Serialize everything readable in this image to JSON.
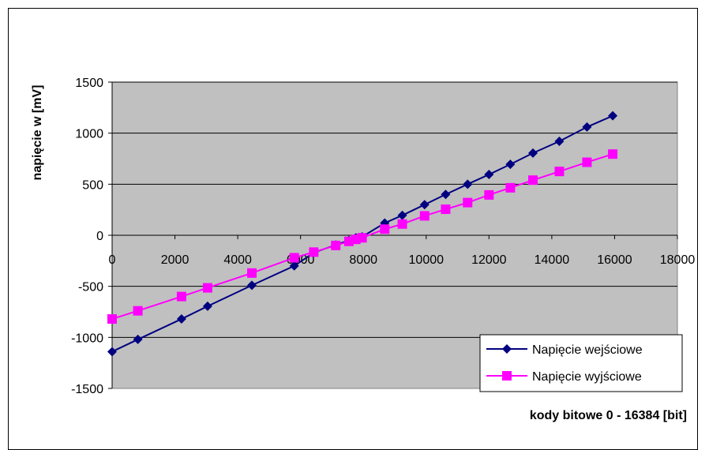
{
  "chart_data": {
    "type": "line",
    "title": "",
    "xlabel": "kody bitowe 0 - 16384 [bit]",
    "ylabel": "napięcie w [mV]",
    "xlim": [
      0,
      18000
    ],
    "ylim": [
      -1500,
      1500
    ],
    "xticks": [
      0,
      2000,
      4000,
      6000,
      8000,
      10000,
      12000,
      14000,
      16000,
      18000
    ],
    "yticks": [
      -1500,
      -1000,
      -500,
      0,
      500,
      1000,
      1500
    ],
    "grid": "horizontal",
    "legend_position": "bottom-right",
    "plot_background": "#c0c0c0",
    "series": [
      {
        "name": "Napięcie wejściowe",
        "color": "#000080",
        "marker": "diamond",
        "x": [
          0,
          820,
          2210,
          3040,
          4450,
          5800,
          6420,
          7120,
          7540,
          7760,
          7960,
          8680,
          9240,
          9950,
          10620,
          11320,
          12000,
          12680,
          13400,
          14240,
          15120,
          15940
        ],
        "y": [
          -1140,
          -1020,
          -820,
          -695,
          -490,
          -300,
          -170,
          -95,
          -50,
          -25,
          -15,
          120,
          195,
          300,
          400,
          500,
          595,
          695,
          805,
          920,
          1060,
          1170
        ]
      },
      {
        "name": "Napięcie wyjściowe",
        "color": "#ff00ff",
        "marker": "square",
        "x": [
          0,
          820,
          2210,
          3040,
          4450,
          5800,
          6420,
          7120,
          7540,
          7760,
          7960,
          8680,
          9240,
          9950,
          10620,
          11320,
          12000,
          12680,
          13400,
          14240,
          15120,
          15940
        ],
        "y": [
          -820,
          -740,
          -600,
          -515,
          -370,
          -220,
          -165,
          -100,
          -60,
          -40,
          -25,
          60,
          110,
          190,
          255,
          320,
          395,
          465,
          540,
          625,
          715,
          795
        ]
      }
    ]
  }
}
